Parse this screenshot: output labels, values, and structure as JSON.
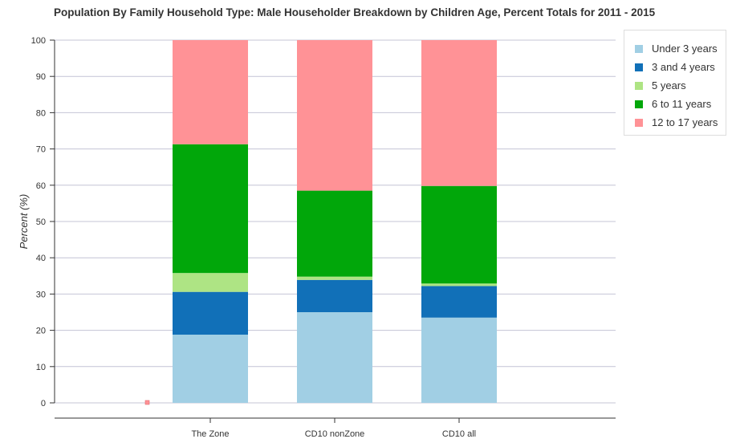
{
  "chart_data": {
    "type": "bar",
    "stacked": true,
    "title": "Population By Family Household Type: Male Householder Breakdown by Children Age, Percent Totals for 2011 - 2015",
    "ylabel": "Percent (%)",
    "xlabel": "",
    "ylim": [
      0,
      100
    ],
    "yticks": [
      "0",
      "10",
      "20",
      "30",
      "40",
      "50",
      "60",
      "70",
      "80",
      "90",
      "100"
    ],
    "grid": true,
    "legend_position": "top-right",
    "categories": [
      "The Zone",
      "CD10 nonZone",
      "CD10 all"
    ],
    "series": [
      {
        "name": "Under 3 years",
        "color": "#a1cfe4",
        "values": [
          18.8,
          25.0,
          23.5
        ]
      },
      {
        "name": "3 and 4 years",
        "color": "#1170b8",
        "values": [
          11.8,
          8.9,
          8.7
        ]
      },
      {
        "name": "5 years",
        "color": "#aee484",
        "values": [
          5.2,
          0.9,
          0.7
        ]
      },
      {
        "name": "6 to 11 years",
        "color": "#01a70a",
        "values": [
          35.5,
          23.7,
          26.9
        ]
      },
      {
        "name": "12 to 17 years",
        "color": "#ff9296",
        "values": [
          28.7,
          41.5,
          40.2
        ]
      }
    ]
  }
}
